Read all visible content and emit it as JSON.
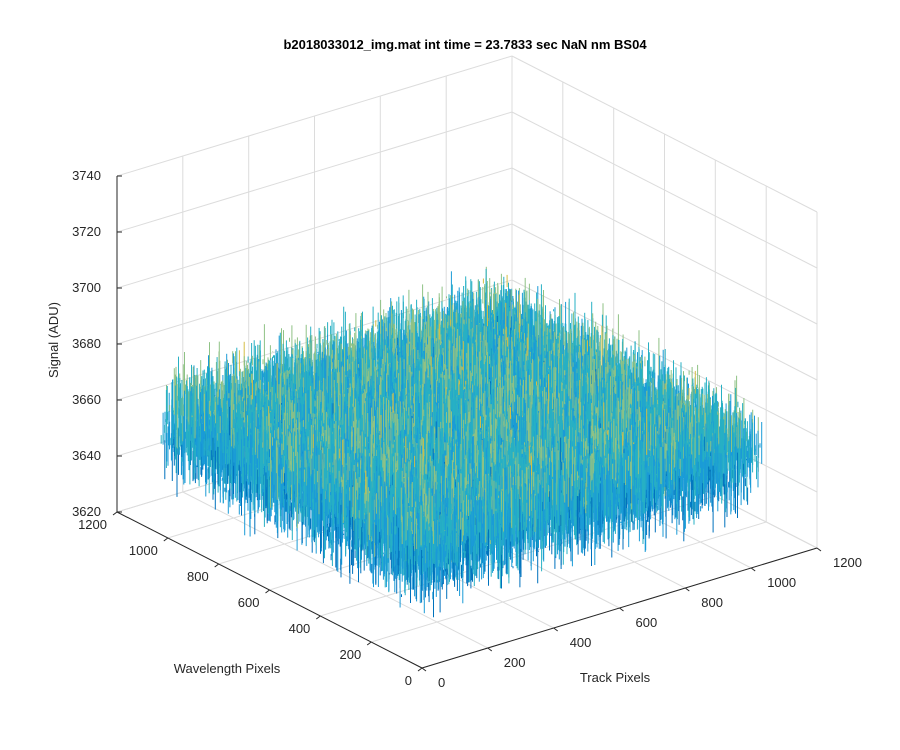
{
  "chart_data": {
    "type": "surface",
    "title": "b2018033012_img.mat int time = 23.7833 sec  NaN nm BS04",
    "xlabel": "Track Pixels",
    "ylabel": "Wavelength Pixels",
    "zlabel": "Signal (ADU)",
    "xlim": [
      0,
      1200
    ],
    "ylim": [
      0,
      1200
    ],
    "zlim": [
      3620,
      3740
    ],
    "xticks": [
      "0",
      "200",
      "400",
      "600",
      "800",
      "1000",
      "1200"
    ],
    "yticks": [
      "0",
      "200",
      "400",
      "600",
      "800",
      "1000",
      "1200"
    ],
    "zticks": [
      "3620",
      "3640",
      "3660",
      "3680",
      "3700",
      "3720",
      "3740"
    ],
    "surface": {
      "x_range": [
        0,
        1024
      ],
      "y_range": [
        0,
        1024
      ],
      "z_mean": 3660,
      "z_min": 3635,
      "z_max": 3710
    },
    "colormap": [
      "#0072bd",
      "#1a9bd7",
      "#27b0c4",
      "#8fc285",
      "#d4bd45",
      "#f0c03a"
    ],
    "grid": true
  }
}
